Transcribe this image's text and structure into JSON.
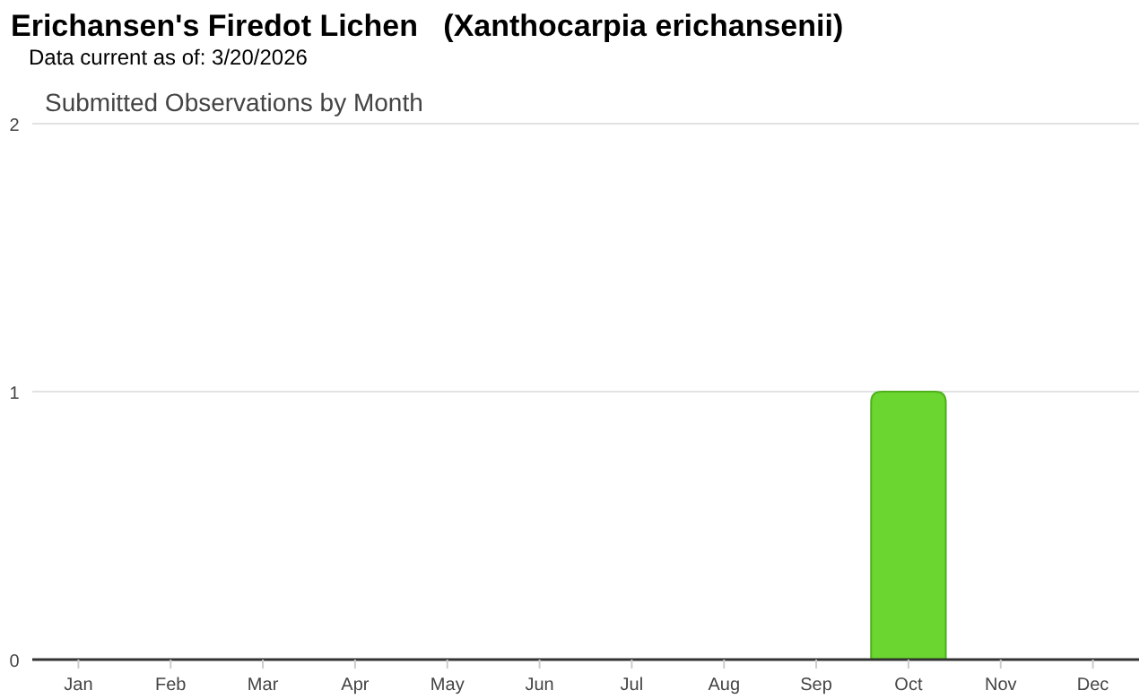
{
  "chart_data": {
    "type": "bar",
    "title": "Erichansen's Firedot Lichen   (Xanthocarpia erichansenii)",
    "subtitle": "Data current as of: 3/20/2026",
    "annotations": [
      "Submitted Observations by Month"
    ],
    "categories": [
      "Jan",
      "Feb",
      "Mar",
      "Apr",
      "May",
      "Jun",
      "Jul",
      "Aug",
      "Sep",
      "Oct",
      "Nov",
      "Dec"
    ],
    "values": [
      0,
      0,
      0,
      0,
      0,
      0,
      0,
      0,
      0,
      1,
      0,
      0
    ],
    "color": "#6ad62f",
    "ylim": [
      0,
      2
    ],
    "yticks": [
      0,
      1,
      2
    ],
    "grid": "y"
  }
}
